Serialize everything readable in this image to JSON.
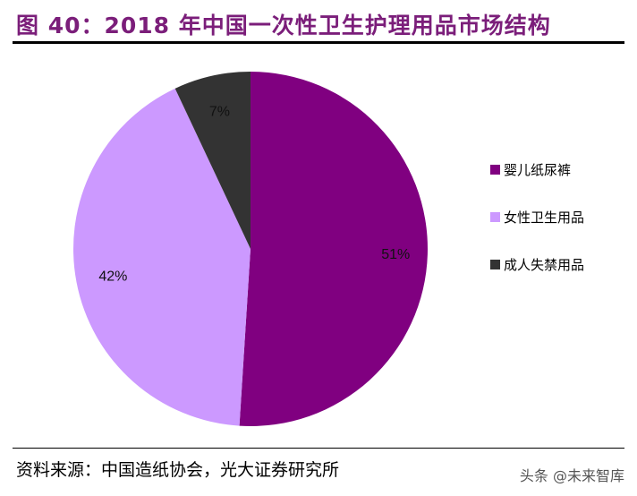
{
  "header": {
    "title": "图 40：2018 年中国一次性卫生护理用品市场结构"
  },
  "chart_data": {
    "type": "pie",
    "title": "",
    "categories": [
      "婴儿纸尿裤",
      "女性卫生用品",
      "成人失禁用品"
    ],
    "values": [
      51,
      42,
      7
    ],
    "labels": [
      "51%",
      "42%",
      "7%"
    ],
    "colors": [
      "#800080",
      "#cc99ff",
      "#333333"
    ],
    "start": "12 o'clock",
    "direction": "clockwise",
    "legend_position": "right"
  },
  "footer": {
    "source": "资料来源：中国造纸协会，光大证券研究所",
    "watermark": "头条 @未来智库"
  }
}
